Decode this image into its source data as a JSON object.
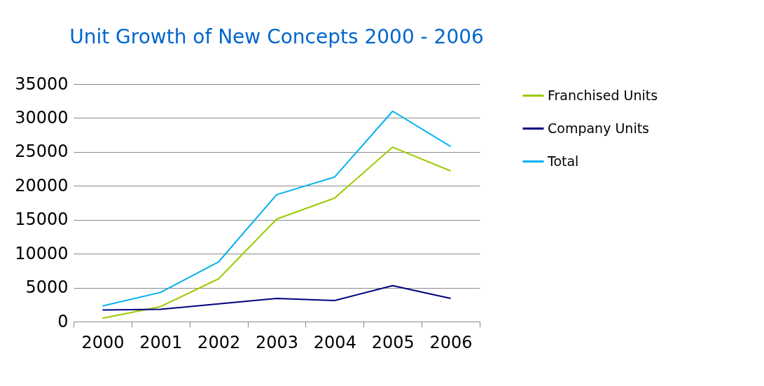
{
  "chart_data": {
    "type": "line",
    "title": "Unit Growth of New Concepts 2000 - 2006",
    "categories": [
      "2000",
      "2001",
      "2002",
      "2003",
      "2004",
      "2005",
      "2006"
    ],
    "series": [
      {
        "name": "Franchised Units",
        "color": "#99cc00",
        "values": [
          500,
          2200,
          6300,
          15100,
          18200,
          25700,
          22200
        ]
      },
      {
        "name": "Company Units",
        "color": "#000080",
        "values": [
          1700,
          1800,
          2600,
          3400,
          3100,
          5300,
          3400
        ]
      },
      {
        "name": "Total",
        "color": "#00b0f0",
        "values": [
          2300,
          4300,
          8800,
          18700,
          21300,
          31000,
          25800
        ]
      }
    ],
    "ylim": [
      0,
      35000
    ],
    "yticks": [
      0,
      5000,
      10000,
      15000,
      20000,
      25000,
      30000,
      35000
    ],
    "grid": "y",
    "legend": "right",
    "marker": "none",
    "line_style": "solid"
  }
}
